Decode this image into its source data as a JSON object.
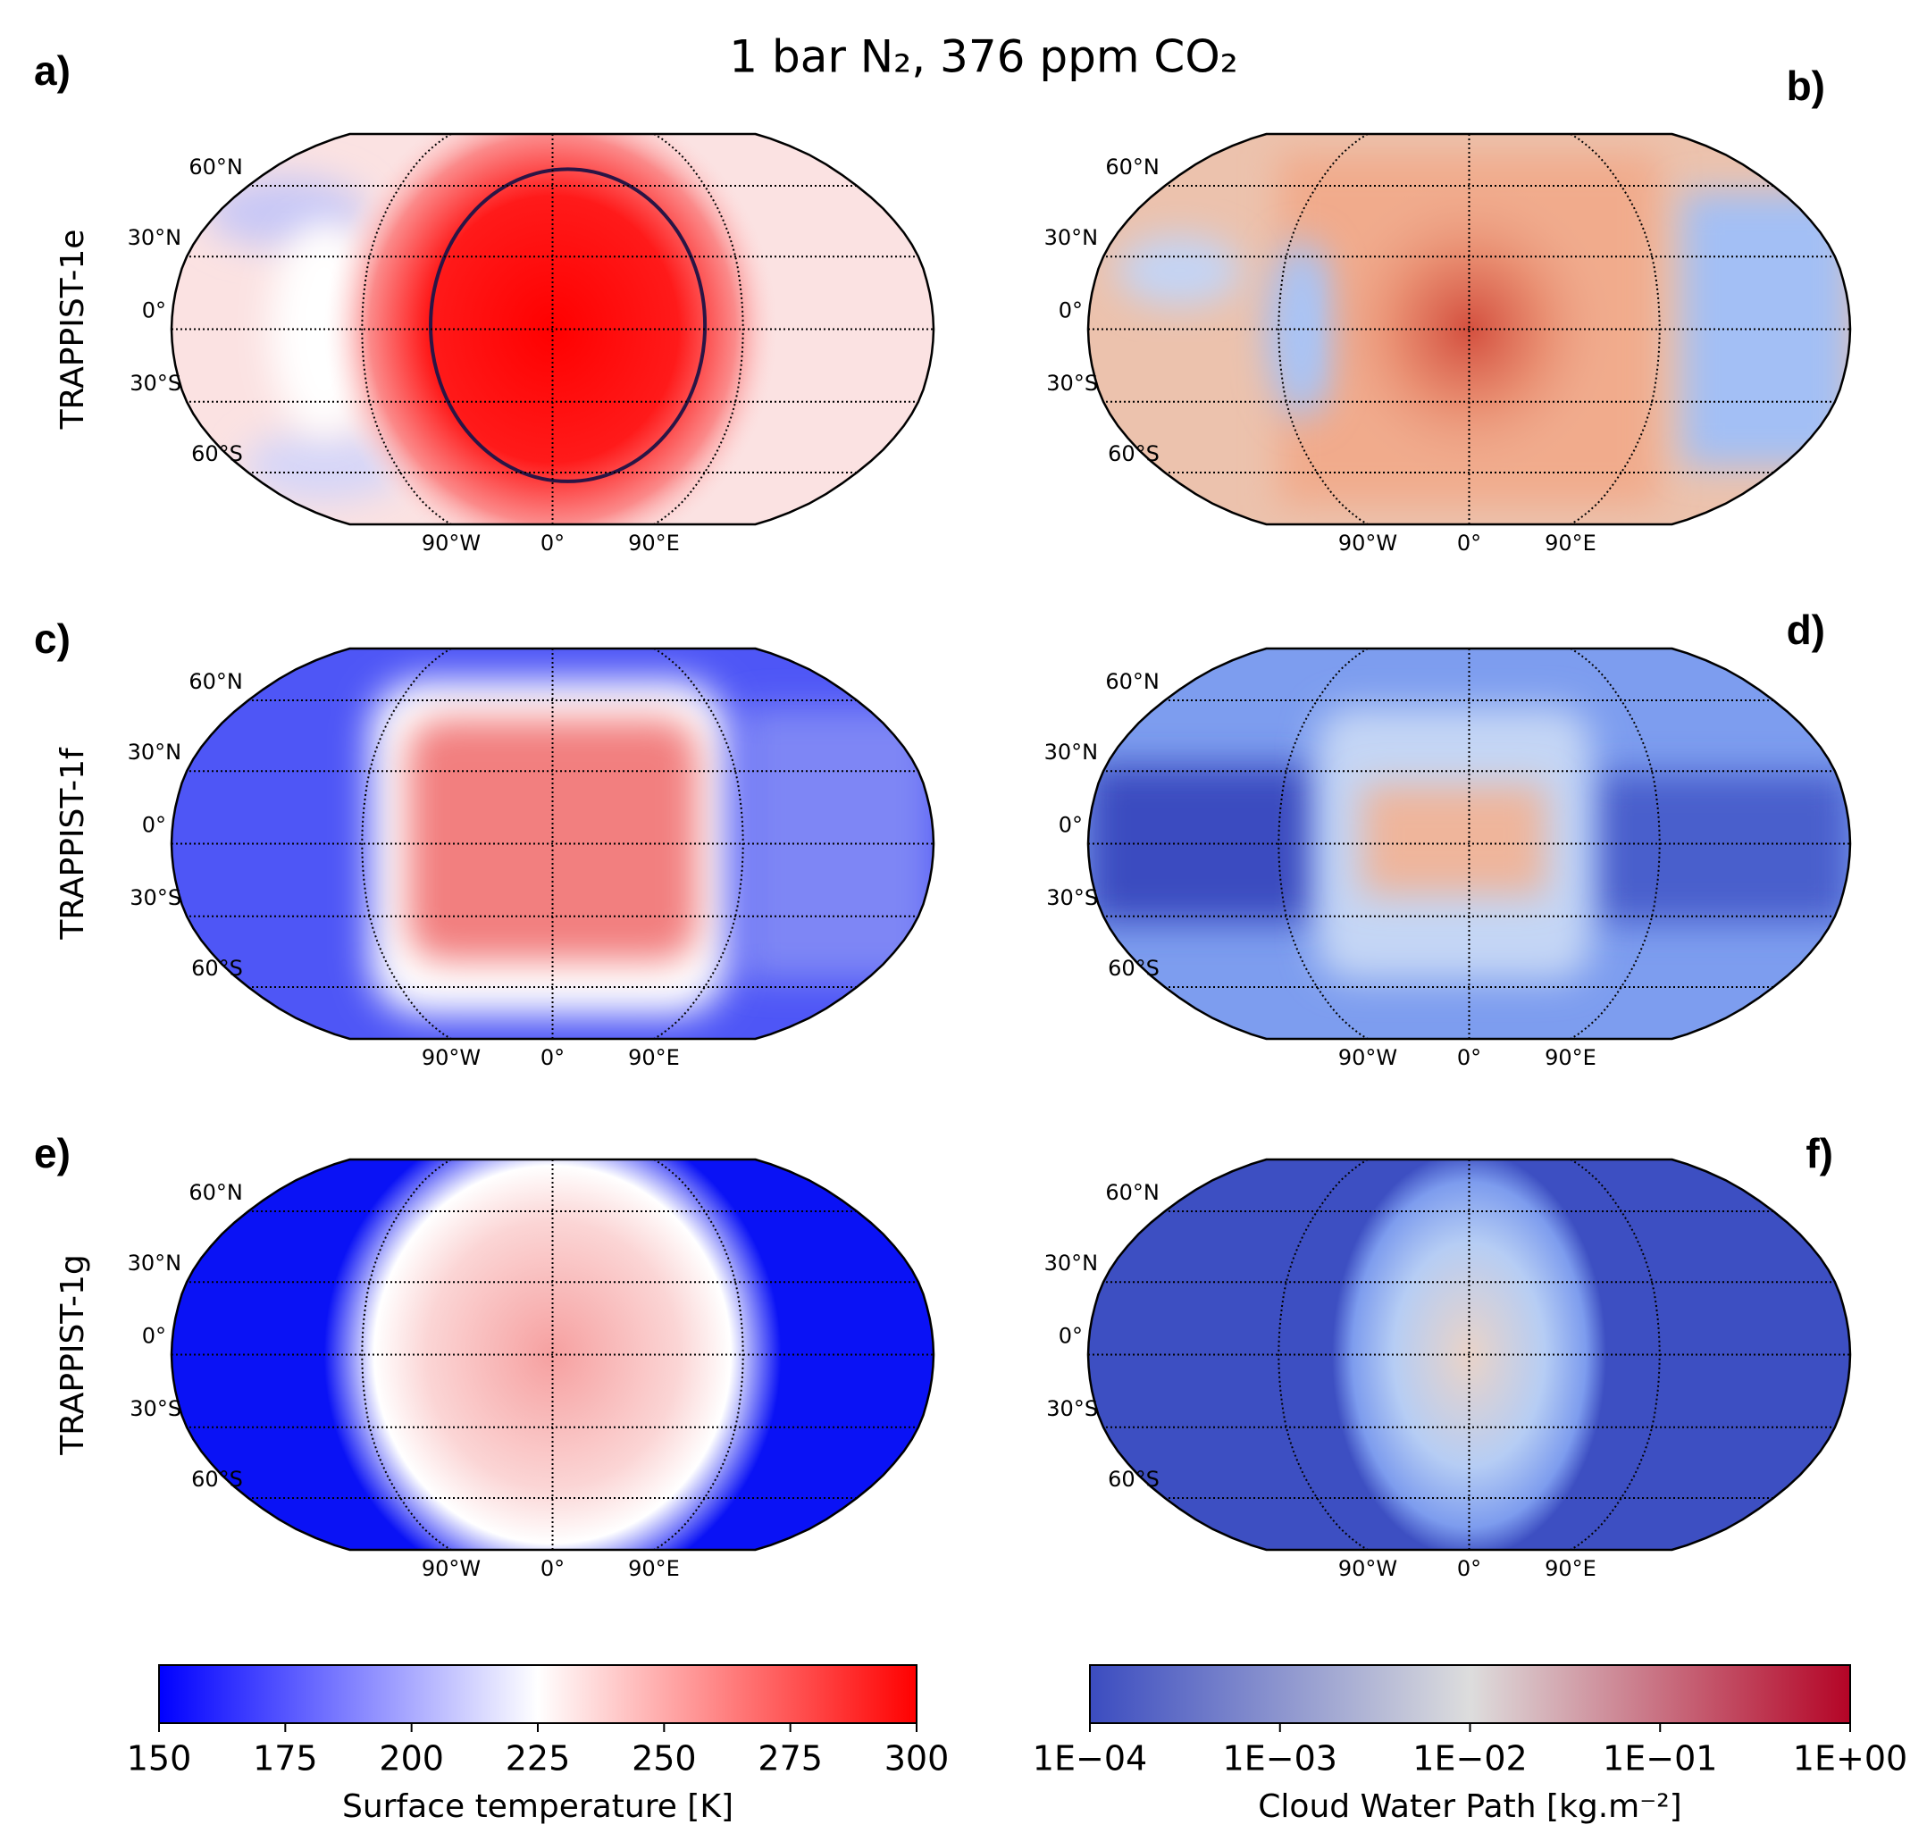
{
  "title": "1 bar N₂, 376 ppm CO₂",
  "panels": [
    {
      "label": "a)",
      "row_label": "TRAPPIST-1e"
    },
    {
      "label": "b)"
    },
    {
      "label": "c)",
      "row_label": "TRAPPIST-1f"
    },
    {
      "label": "d)"
    },
    {
      "label": "e)",
      "row_label": "TRAPPIST-1g"
    },
    {
      "label": "f)"
    }
  ],
  "lat_labels": [
    "60°N",
    "30°N",
    "0°",
    "30°S",
    "60°S"
  ],
  "lon_labels": [
    "90°W",
    "0°",
    "90°E"
  ],
  "colorbars": [
    {
      "label": "Surface temperature [K]",
      "lim": [
        150,
        300
      ],
      "ticks": [
        150,
        175,
        200,
        225,
        250,
        275,
        300
      ],
      "colors": [
        "#0000ff",
        "#ffffff",
        "#ff0000"
      ]
    },
    {
      "label": "Cloud Water Path [kg.m⁻²]",
      "log_scale": true,
      "lim": [
        0.0001,
        1
      ],
      "ticks": [
        {
          "value": 0.0001,
          "label": "1E−04"
        },
        {
          "value": 0.001,
          "label": "1E−03"
        },
        {
          "value": 0.01,
          "label": "1E−02"
        },
        {
          "value": 0.1,
          "label": "1E−01"
        },
        {
          "value": 1,
          "label": "1E+00"
        }
      ],
      "colors": [
        "#3b4cc0",
        "#dddddd",
        "#b40426"
      ]
    }
  ]
}
